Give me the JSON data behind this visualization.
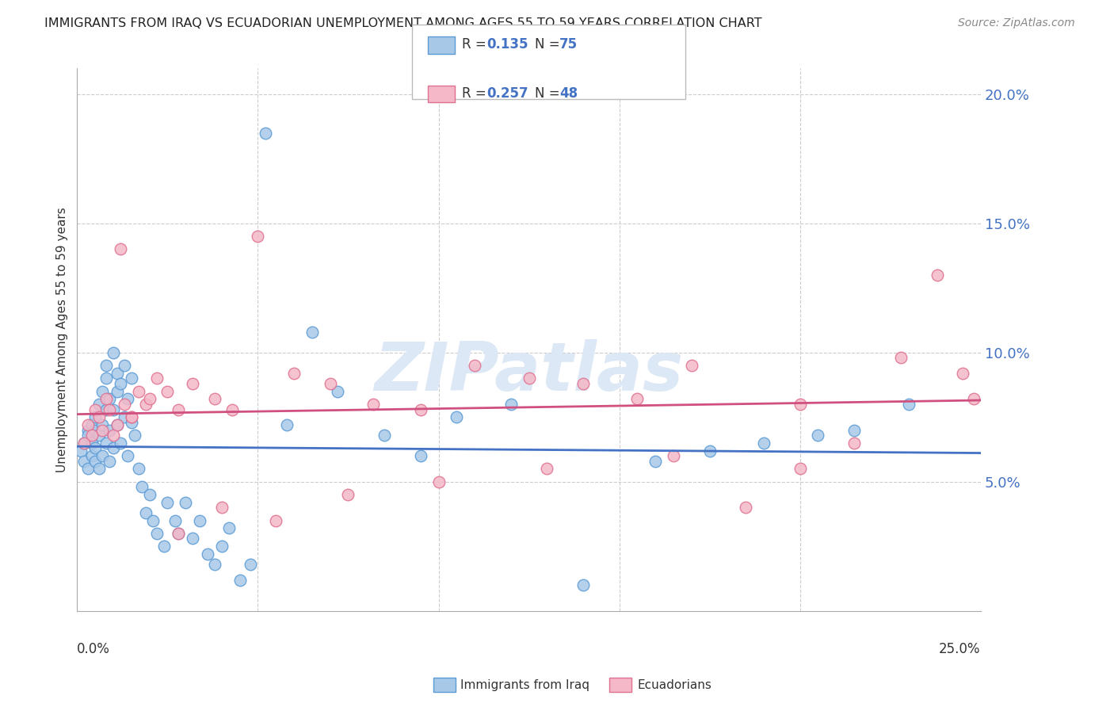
{
  "title": "IMMIGRANTS FROM IRAQ VS ECUADORIAN UNEMPLOYMENT AMONG AGES 55 TO 59 YEARS CORRELATION CHART",
  "source": "Source: ZipAtlas.com",
  "ylabel": "Unemployment Among Ages 55 to 59 years",
  "xlim": [
    0.0,
    0.25
  ],
  "ylim": [
    0.0,
    0.21
  ],
  "legend1_r": "0.135",
  "legend1_n": "75",
  "legend2_r": "0.257",
  "legend2_n": "48",
  "color_blue": "#a8c8e8",
  "color_pink": "#f4b8c8",
  "edge_blue": "#5b9bd5",
  "edge_pink": "#e07090",
  "line_blue": "#4472c4",
  "line_pink": "#d05080",
  "text_blue": "#4472c4",
  "watermark_color": "#dce8f5",
  "grid_color": "#cccccc",
  "iraq_x": [
    0.001,
    0.002,
    0.002,
    0.003,
    0.003,
    0.003,
    0.004,
    0.004,
    0.004,
    0.005,
    0.005,
    0.005,
    0.005,
    0.006,
    0.006,
    0.006,
    0.007,
    0.007,
    0.007,
    0.008,
    0.008,
    0.008,
    0.008,
    0.009,
    0.009,
    0.009,
    0.01,
    0.01,
    0.01,
    0.011,
    0.011,
    0.011,
    0.012,
    0.012,
    0.013,
    0.013,
    0.014,
    0.014,
    0.015,
    0.015,
    0.016,
    0.017,
    0.018,
    0.019,
    0.02,
    0.021,
    0.022,
    0.024,
    0.025,
    0.027,
    0.028,
    0.03,
    0.032,
    0.034,
    0.036,
    0.038,
    0.04,
    0.042,
    0.045,
    0.048,
    0.052,
    0.058,
    0.065,
    0.072,
    0.085,
    0.095,
    0.105,
    0.12,
    0.14,
    0.16,
    0.175,
    0.19,
    0.205,
    0.215,
    0.23
  ],
  "iraq_y": [
    0.062,
    0.058,
    0.065,
    0.055,
    0.07,
    0.068,
    0.06,
    0.065,
    0.072,
    0.058,
    0.063,
    0.07,
    0.075,
    0.055,
    0.068,
    0.08,
    0.06,
    0.072,
    0.085,
    0.065,
    0.078,
    0.09,
    0.095,
    0.058,
    0.07,
    0.082,
    0.063,
    0.078,
    0.1,
    0.092,
    0.085,
    0.072,
    0.065,
    0.088,
    0.075,
    0.095,
    0.082,
    0.06,
    0.09,
    0.073,
    0.068,
    0.055,
    0.048,
    0.038,
    0.045,
    0.035,
    0.03,
    0.025,
    0.042,
    0.035,
    0.03,
    0.042,
    0.028,
    0.035,
    0.022,
    0.018,
    0.025,
    0.032,
    0.012,
    0.018,
    0.185,
    0.072,
    0.108,
    0.085,
    0.068,
    0.06,
    0.075,
    0.08,
    0.01,
    0.058,
    0.062,
    0.065,
    0.068,
    0.07,
    0.08
  ],
  "ecuador_x": [
    0.002,
    0.003,
    0.004,
    0.005,
    0.006,
    0.007,
    0.008,
    0.009,
    0.01,
    0.011,
    0.012,
    0.013,
    0.015,
    0.017,
    0.019,
    0.022,
    0.025,
    0.028,
    0.032,
    0.038,
    0.043,
    0.05,
    0.06,
    0.07,
    0.082,
    0.095,
    0.11,
    0.125,
    0.14,
    0.155,
    0.17,
    0.185,
    0.2,
    0.215,
    0.228,
    0.238,
    0.245,
    0.248,
    0.015,
    0.02,
    0.028,
    0.04,
    0.055,
    0.075,
    0.1,
    0.13,
    0.165,
    0.2
  ],
  "ecuador_y": [
    0.065,
    0.072,
    0.068,
    0.078,
    0.075,
    0.07,
    0.082,
    0.078,
    0.068,
    0.072,
    0.14,
    0.08,
    0.075,
    0.085,
    0.08,
    0.09,
    0.085,
    0.078,
    0.088,
    0.082,
    0.078,
    0.145,
    0.092,
    0.088,
    0.08,
    0.078,
    0.095,
    0.09,
    0.088,
    0.082,
    0.095,
    0.04,
    0.055,
    0.065,
    0.098,
    0.13,
    0.092,
    0.082,
    0.075,
    0.082,
    0.03,
    0.04,
    0.035,
    0.045,
    0.05,
    0.055,
    0.06,
    0.08
  ]
}
